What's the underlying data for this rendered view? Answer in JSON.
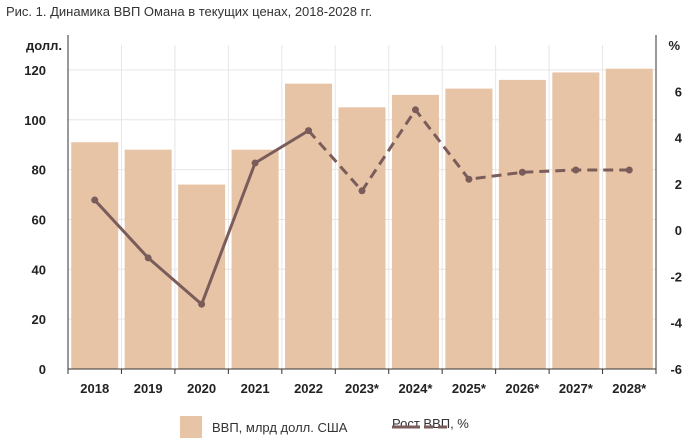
{
  "figure_title": "Рис. 1. Динамика ВВП Омана в текущих ценах, 2018-2028 гг.",
  "colors": {
    "bar": "#e8c4a7",
    "line": "#7a5c5a",
    "grid": "#e6e6e6",
    "axis": "#333333"
  },
  "chart_data": {
    "type": "bar",
    "title": "",
    "categories": [
      "2018",
      "2019",
      "2020",
      "2021",
      "2022",
      "2023*",
      "2024*",
      "2025*",
      "2026*",
      "2027*",
      "2028*"
    ],
    "series": [
      {
        "name": "ВВП, млрд долл. США",
        "type": "bar",
        "axis": "left",
        "values": [
          91,
          88,
          74,
          88,
          114.5,
          105,
          110,
          112.5,
          116,
          119,
          120.5
        ]
      },
      {
        "name": "Рост ВВП, %",
        "type": "line",
        "axis": "right",
        "values": [
          1.3,
          -1.2,
          -3.2,
          2.9,
          4.3,
          1.7,
          5.2,
          2.2,
          2.5,
          2.6,
          2.6
        ],
        "solid_through": "2022",
        "dashed_from": "2022"
      }
    ],
    "y_left": {
      "unit_label": "долл.",
      "ylim": [
        0,
        130
      ],
      "ticks": [
        0,
        20,
        40,
        60,
        80,
        100,
        120
      ]
    },
    "y_right": {
      "unit_label": "%",
      "ylim": [
        -6,
        8
      ],
      "ticks": [
        -6,
        -4,
        -2,
        0,
        2,
        4,
        6
      ]
    },
    "grid": true,
    "legend_position": "bottom"
  }
}
